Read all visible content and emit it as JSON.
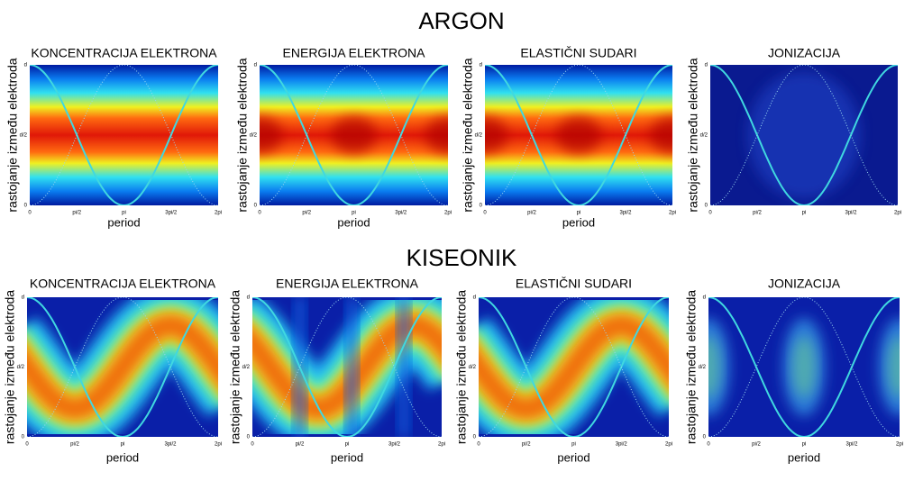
{
  "groups": [
    {
      "title": "ARGON",
      "panels": [
        {
          "title": "KONCENTRACIJA ELEKTRONA",
          "ylabel": "rastojanje između elektroda",
          "xlabel": "period",
          "xticks": [
            "0",
            "pi/2",
            "pi",
            "3pi/2",
            "2pi"
          ],
          "yticks": [
            "0",
            "d/2",
            "d"
          ]
        },
        {
          "title": "ENERGIJA ELEKTRONA",
          "ylabel": "rastojanje između elektroda",
          "xlabel": "period",
          "xticks": [
            "0",
            "pi/2",
            "pi",
            "3pi/2",
            "2pi"
          ],
          "yticks": [
            "0",
            "d/2",
            "d"
          ]
        },
        {
          "title": "ELASTIČNI SUDARI",
          "ylabel": "rastojanje između elektroda",
          "xlabel": "period",
          "xticks": [
            "0",
            "pi/2",
            "pi",
            "3pi/2",
            "2pi"
          ],
          "yticks": [
            "0",
            "d/2",
            "d"
          ]
        },
        {
          "title": "JONIZACIJA",
          "ylabel": "rastojanje između elektroda",
          "xticks": [
            "0",
            "pi/2",
            "pi",
            "3pi/2",
            "2pi"
          ],
          "yticks": [
            "0",
            "d/2",
            "d"
          ]
        }
      ]
    },
    {
      "title": "KISEONIK",
      "panels": [
        {
          "title": "KONCENTRACIJA ELEKTRONA",
          "ylabel": "rastojanje između elektroda",
          "xlabel": "period",
          "xticks": [
            "0",
            "pi/2",
            "pi",
            "3pi/2",
            "2pi"
          ],
          "yticks": [
            "0",
            "d/2",
            "d"
          ]
        },
        {
          "title": "ENERGIJA ELEKTRONA",
          "ylabel": "rastojanje između elektroda",
          "xlabel": "period",
          "xticks": [
            "0",
            "pi/2",
            "pi",
            "3pi/2",
            "2pi"
          ],
          "yticks": [
            "0",
            "d/2",
            "d"
          ]
        },
        {
          "title": "ELASTIČNI SUDARI",
          "ylabel": "rastojanje između elektroda",
          "xlabel": "period",
          "xticks": [
            "0",
            "pi/2",
            "pi",
            "3pi/2",
            "2pi"
          ],
          "yticks": [
            "0",
            "d/2",
            "d"
          ]
        },
        {
          "title": "JONIZACIJA",
          "ylabel": "rastojanje između elektroda",
          "xlabel": "period",
          "xticks": [
            "0",
            "pi/2",
            "pi",
            "3pi/2",
            "2pi"
          ],
          "yticks": [
            "0",
            "d/2",
            "d"
          ]
        }
      ]
    }
  ]
}
